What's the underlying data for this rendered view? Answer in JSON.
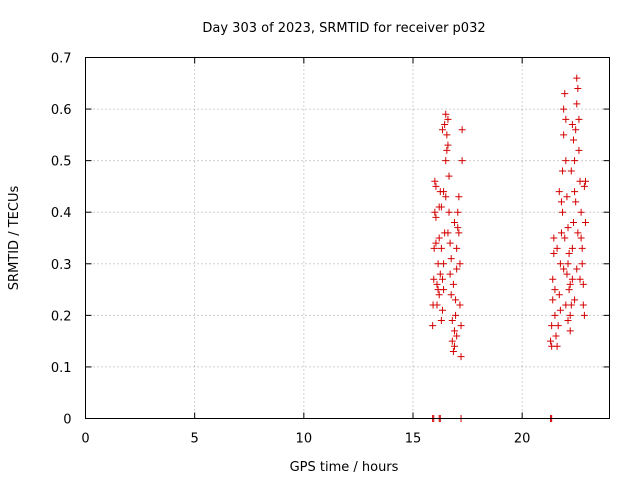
{
  "chart_data": {
    "type": "scatter",
    "title": "Day 303 of 2023, SRMTID for receiver p032",
    "xlabel": "GPS time / hours",
    "ylabel": "SRMTID / TECUs",
    "xlim": [
      0,
      24
    ],
    "ylim": [
      0,
      0.7
    ],
    "xticks": [
      0,
      5,
      10,
      15,
      20
    ],
    "xtick_labels": [
      "0",
      "5",
      "10",
      "15",
      "20"
    ],
    "yticks": [
      0,
      0.1,
      0.2,
      0.3,
      0.4,
      0.5,
      0.6,
      0.7
    ],
    "ytick_labels": [
      "0",
      "0.1",
      "0.2",
      "0.3",
      "0.4",
      "0.5",
      "0.6",
      "0.7"
    ],
    "grid": true,
    "marker": "+",
    "color": "#d40000",
    "series": [
      {
        "name": "SRMTID",
        "points": [
          [
            15.9,
            0.0
          ],
          [
            15.95,
            0.0
          ],
          [
            16.2,
            0.0
          ],
          [
            16.25,
            0.0
          ],
          [
            17.2,
            0.0
          ],
          [
            21.3,
            0.0
          ],
          [
            21.35,
            0.0
          ],
          [
            15.9,
            0.18
          ],
          [
            15.92,
            0.22
          ],
          [
            15.95,
            0.27
          ],
          [
            15.97,
            0.33
          ],
          [
            16.0,
            0.4
          ],
          [
            16.0,
            0.46
          ],
          [
            16.05,
            0.45
          ],
          [
            16.05,
            0.34
          ],
          [
            16.1,
            0.26
          ],
          [
            16.1,
            0.22
          ],
          [
            16.15,
            0.25
          ],
          [
            16.15,
            0.3
          ],
          [
            16.2,
            0.35
          ],
          [
            16.2,
            0.41
          ],
          [
            16.25,
            0.44
          ],
          [
            16.3,
            0.41
          ],
          [
            16.3,
            0.33
          ],
          [
            16.35,
            0.27
          ],
          [
            16.35,
            0.21
          ],
          [
            16.4,
            0.25
          ],
          [
            16.4,
            0.3
          ],
          [
            16.45,
            0.36
          ],
          [
            16.5,
            0.43
          ],
          [
            16.5,
            0.5
          ],
          [
            16.55,
            0.55
          ],
          [
            16.6,
            0.58
          ],
          [
            16.6,
            0.53
          ],
          [
            16.65,
            0.47
          ],
          [
            16.65,
            0.4
          ],
          [
            16.7,
            0.34
          ],
          [
            16.7,
            0.28
          ],
          [
            16.75,
            0.24
          ],
          [
            16.8,
            0.19
          ],
          [
            16.8,
            0.15
          ],
          [
            16.85,
            0.13
          ],
          [
            16.9,
            0.14
          ],
          [
            16.9,
            0.17
          ],
          [
            16.95,
            0.2
          ],
          [
            16.95,
            0.23
          ],
          [
            17.0,
            0.29
          ],
          [
            17.0,
            0.33
          ],
          [
            17.05,
            0.37
          ],
          [
            17.05,
            0.4
          ],
          [
            17.1,
            0.43
          ],
          [
            17.1,
            0.36
          ],
          [
            17.15,
            0.3
          ],
          [
            17.15,
            0.22
          ],
          [
            17.2,
            0.18
          ],
          [
            17.2,
            0.12
          ],
          [
            17.25,
            0.5
          ],
          [
            17.25,
            0.56
          ],
          [
            16.45,
            0.57
          ],
          [
            16.5,
            0.59
          ],
          [
            16.55,
            0.52
          ],
          [
            16.35,
            0.56
          ],
          [
            16.4,
            0.44
          ],
          [
            16.25,
            0.28
          ],
          [
            16.3,
            0.19
          ],
          [
            16.6,
            0.36
          ],
          [
            16.75,
            0.31
          ],
          [
            16.85,
            0.26
          ],
          [
            17.0,
            0.16
          ],
          [
            16.9,
            0.38
          ],
          [
            16.2,
            0.24
          ],
          [
            16.05,
            0.39
          ],
          [
            21.3,
            0.15
          ],
          [
            21.35,
            0.14
          ],
          [
            21.35,
            0.18
          ],
          [
            21.4,
            0.23
          ],
          [
            21.4,
            0.27
          ],
          [
            21.45,
            0.32
          ],
          [
            21.45,
            0.35
          ],
          [
            21.5,
            0.25
          ],
          [
            21.5,
            0.2
          ],
          [
            21.55,
            0.16
          ],
          [
            21.6,
            0.14
          ],
          [
            21.65,
            0.18
          ],
          [
            21.7,
            0.24
          ],
          [
            21.75,
            0.3
          ],
          [
            21.8,
            0.36
          ],
          [
            21.8,
            0.42
          ],
          [
            21.85,
            0.48
          ],
          [
            21.9,
            0.55
          ],
          [
            21.9,
            0.6
          ],
          [
            21.95,
            0.63
          ],
          [
            22.0,
            0.58
          ],
          [
            22.0,
            0.5
          ],
          [
            22.05,
            0.43
          ],
          [
            22.1,
            0.37
          ],
          [
            22.1,
            0.3
          ],
          [
            22.15,
            0.25
          ],
          [
            22.2,
            0.2
          ],
          [
            22.2,
            0.17
          ],
          [
            22.25,
            0.22
          ],
          [
            22.3,
            0.27
          ],
          [
            22.3,
            0.33
          ],
          [
            22.35,
            0.38
          ],
          [
            22.4,
            0.44
          ],
          [
            22.4,
            0.5
          ],
          [
            22.45,
            0.56
          ],
          [
            22.5,
            0.61
          ],
          [
            22.5,
            0.66
          ],
          [
            22.55,
            0.64
          ],
          [
            22.6,
            0.58
          ],
          [
            22.6,
            0.52
          ],
          [
            22.65,
            0.46
          ],
          [
            22.7,
            0.4
          ],
          [
            22.7,
            0.35
          ],
          [
            22.75,
            0.3
          ],
          [
            22.8,
            0.26
          ],
          [
            22.8,
            0.22
          ],
          [
            22.85,
            0.2
          ],
          [
            22.85,
            0.45
          ],
          [
            22.9,
            0.46
          ],
          [
            22.9,
            0.38
          ],
          [
            21.6,
            0.33
          ],
          [
            21.7,
            0.44
          ],
          [
            21.85,
            0.4
          ],
          [
            21.95,
            0.35
          ],
          [
            22.05,
            0.28
          ],
          [
            22.15,
            0.32
          ],
          [
            22.25,
            0.48
          ],
          [
            22.35,
            0.54
          ],
          [
            22.45,
            0.42
          ],
          [
            22.55,
            0.36
          ],
          [
            22.65,
            0.27
          ],
          [
            22.75,
            0.33
          ],
          [
            21.75,
            0.21
          ],
          [
            21.9,
            0.29
          ],
          [
            22.0,
            0.22
          ],
          [
            22.1,
            0.19
          ],
          [
            22.2,
            0.26
          ],
          [
            22.3,
            0.57
          ],
          [
            22.4,
            0.23
          ],
          [
            22.5,
            0.29
          ]
        ]
      }
    ]
  }
}
